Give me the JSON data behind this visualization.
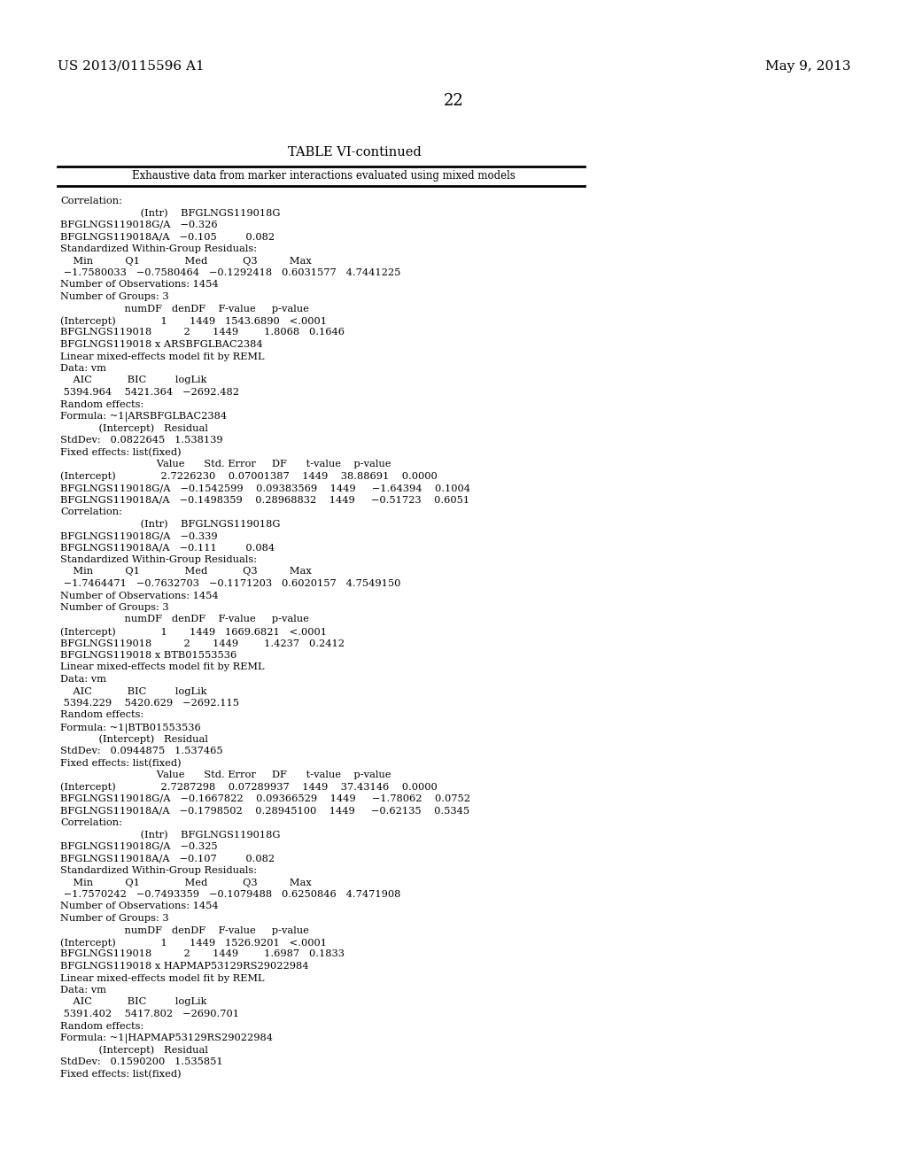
{
  "patent_number": "US 2013/0115596 A1",
  "date": "May 9, 2013",
  "page_number": "22",
  "table_title": "TABLE VI-continued",
  "table_subtitle": "Exhaustive data from marker interactions evaluated using mixed models",
  "background_color": "#ffffff",
  "text_color": "#000000",
  "content_lines": [
    "Correlation:",
    "                         (Intr)    BFGLNGS119018G",
    "BFGLNGS119018G/A   −0.326",
    "BFGLNGS119018A/A   −0.105         0.082",
    "Standardized Within-Group Residuals:",
    "    Min          Q1              Med           Q3          Max",
    " −1.7580033   −0.7580464   −0.1292418   0.6031577   4.7441225",
    "Number of Observations: 1454",
    "Number of Groups: 3",
    "                    numDF   denDF    F-value     p-value",
    "(Intercept)              1       1449   1543.6890   <.0001",
    "BFGLNGS119018          2       1449        1.8068   0.1646",
    "BFGLNGS119018 x ARSBFGLBAC2384",
    "Linear mixed-effects model fit by REML",
    "Data: vm",
    "    AIC           BIC         logLik",
    " 5394.964    5421.364   −2692.482",
    "Random effects:",
    "Formula: ~1|ARSBFGLBAC2384",
    "            (Intercept)   Residual",
    "StdDev:   0.0822645   1.538139",
    "Fixed effects: list(fixed)",
    "                              Value      Std. Error     DF      t-value    p-value",
    "(Intercept)              2.7226230    0.07001387    1449    38.88691    0.0000",
    "BFGLNGS119018G/A   −0.1542599    0.09383569    1449     −1.64394    0.1004",
    "BFGLNGS119018A/A   −0.1498359    0.28968832    1449     −0.51723    0.6051",
    "Correlation:",
    "                         (Intr)    BFGLNGS119018G",
    "BFGLNGS119018G/A   −0.339",
    "BFGLNGS119018A/A   −0.111         0.084",
    "Standardized Within-Group Residuals:",
    "    Min          Q1              Med           Q3          Max",
    " −1.7464471   −0.7632703   −0.1171203   0.6020157   4.7549150",
    "Number of Observations: 1454",
    "Number of Groups: 3",
    "                    numDF   denDF    F-value     p-value",
    "(Intercept)              1       1449   1669.6821   <.0001",
    "BFGLNGS119018          2       1449        1.4237   0.2412",
    "BFGLNGS119018 x BTB01553536",
    "Linear mixed-effects model fit by REML",
    "Data: vm",
    "    AIC           BIC         logLik",
    " 5394.229    5420.629   −2692.115",
    "Random effects:",
    "Formula: ~1|BTB01553536",
    "            (Intercept)   Residual",
    "StdDev:   0.0944875   1.537465",
    "Fixed effects: list(fixed)",
    "                              Value      Std. Error     DF      t-value    p-value",
    "(Intercept)              2.7287298    0.07289937    1449    37.43146    0.0000",
    "BFGLNGS119018G/A   −0.1667822    0.09366529    1449     −1.78062    0.0752",
    "BFGLNGS119018A/A   −0.1798502    0.28945100    1449     −0.62135    0.5345",
    "Correlation:",
    "                         (Intr)    BFGLNGS119018G",
    "BFGLNGS119018G/A   −0.325",
    "BFGLNGS119018A/A   −0.107         0.082",
    "Standardized Within-Group Residuals:",
    "    Min          Q1              Med           Q3          Max",
    " −1.7570242   −0.7493359   −0.1079488   0.6250846   4.7471908",
    "Number of Observations: 1454",
    "Number of Groups: 3",
    "                    numDF   denDF    F-value     p-value",
    "(Intercept)              1       1449   1526.9201   <.0001",
    "BFGLNGS119018          2       1449        1.6987   0.1833",
    "BFGLNGS119018 x HAPMAP53129RS29022984",
    "Linear mixed-effects model fit by REML",
    "Data: vm",
    "    AIC           BIC         logLik",
    " 5391.402    5417.802   −2690.701",
    "Random effects:",
    "Formula: ~1|HAPMAP53129RS29022984",
    "            (Intercept)   Residual",
    "StdDev:   0.1590200   1.535851",
    "Fixed effects: list(fixed)"
  ]
}
